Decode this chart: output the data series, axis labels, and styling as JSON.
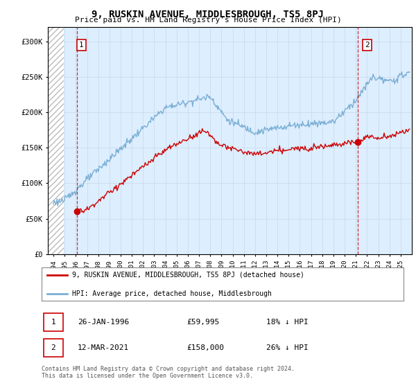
{
  "title": "9, RUSKIN AVENUE, MIDDLESBROUGH, TS5 8PJ",
  "subtitle": "Price paid vs. HM Land Registry's House Price Index (HPI)",
  "legend_line1": "9, RUSKIN AVENUE, MIDDLESBROUGH, TS5 8PJ (detached house)",
  "legend_line2": "HPI: Average price, detached house, Middlesbrough",
  "sale1_date": "26-JAN-1996",
  "sale1_price": "£59,995",
  "sale1_hpi": "18% ↓ HPI",
  "sale2_date": "12-MAR-2021",
  "sale2_price": "£158,000",
  "sale2_hpi": "26% ↓ HPI",
  "footer": "Contains HM Land Registry data © Crown copyright and database right 2024.\nThis data is licensed under the Open Government Licence v3.0.",
  "property_color": "#cc0000",
  "hpi_color": "#7bafd4",
  "background_color": "#ffffff",
  "plot_bg_color": "#ddeeff",
  "ylim": [
    0,
    320000
  ],
  "yticks": [
    0,
    50000,
    100000,
    150000,
    200000,
    250000,
    300000
  ],
  "xlim_start": 1993.5,
  "xlim_end": 2026.0,
  "sale1_x": 1996.07,
  "sale1_y": 59995,
  "sale2_x": 2021.19,
  "sale2_y": 158000
}
